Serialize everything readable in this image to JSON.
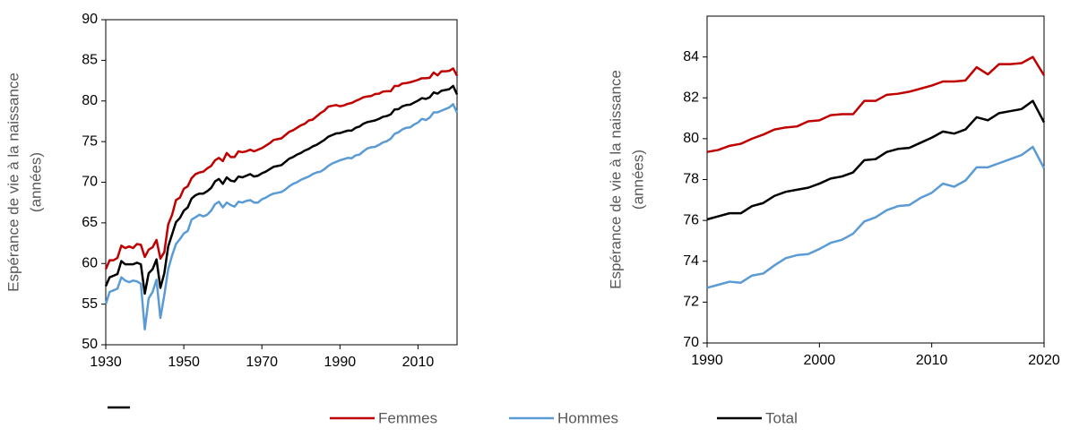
{
  "chart_data": [
    {
      "type": "line",
      "ylabel": [
        "Espérance de vie à la naissance",
        "(années)"
      ],
      "x": [
        1930,
        1931,
        1932,
        1933,
        1934,
        1935,
        1936,
        1937,
        1938,
        1939,
        1940,
        1941,
        1942,
        1943,
        1944,
        1945,
        1946,
        1947,
        1948,
        1949,
        1950,
        1951,
        1952,
        1953,
        1954,
        1955,
        1956,
        1957,
        1958,
        1959,
        1960,
        1961,
        1962,
        1963,
        1964,
        1965,
        1966,
        1967,
        1968,
        1969,
        1970,
        1971,
        1972,
        1973,
        1974,
        1975,
        1976,
        1977,
        1978,
        1979,
        1980,
        1981,
        1982,
        1983,
        1984,
        1985,
        1986,
        1987,
        1988,
        1989,
        1990,
        1991,
        1992,
        1993,
        1994,
        1995,
        1996,
        1997,
        1998,
        1999,
        2000,
        2001,
        2002,
        2003,
        2004,
        2005,
        2006,
        2007,
        2008,
        2009,
        2010,
        2011,
        2012,
        2013,
        2014,
        2015,
        2016,
        2017,
        2018,
        2019,
        2020
      ],
      "xlim": [
        1930,
        2020
      ],
      "xticks": [
        1930,
        1950,
        1970,
        1990,
        2010
      ],
      "ylim": [
        50,
        90
      ],
      "yticks": [
        50,
        55,
        60,
        65,
        70,
        75,
        80,
        85,
        90
      ],
      "series": [
        {
          "name": "Femmes",
          "color": "#c00000",
          "values": [
            59.3,
            60.4,
            60.4,
            60.7,
            62.2,
            61.9,
            62.1,
            61.9,
            62.4,
            62.3,
            60.8,
            61.7,
            62.0,
            62.9,
            60.6,
            61.4,
            64.8,
            66.0,
            67.8,
            68.1,
            69.2,
            69.5,
            70.5,
            71.0,
            71.2,
            71.3,
            71.7,
            72.0,
            72.7,
            73.0,
            72.6,
            73.6,
            73.1,
            73.1,
            73.8,
            73.7,
            73.8,
            74.0,
            73.8,
            74.0,
            74.2,
            74.5,
            74.8,
            75.2,
            75.3,
            75.4,
            75.8,
            76.2,
            76.4,
            76.7,
            77.0,
            77.2,
            77.6,
            77.7,
            78.1,
            78.5,
            78.8,
            79.3,
            79.4,
            79.5,
            79.35,
            79.45,
            79.65,
            79.75,
            80.0,
            80.2,
            80.45,
            80.55,
            80.6,
            80.85,
            80.9,
            81.15,
            81.2,
            81.2,
            81.85,
            81.85,
            82.15,
            82.2,
            82.3,
            82.45,
            82.6,
            82.8,
            82.8,
            82.85,
            83.5,
            83.15,
            83.65,
            83.65,
            83.7,
            84.0,
            83.1
          ]
        },
        {
          "name": "Hommes",
          "color": "#5b9bd5",
          "values": [
            55.0,
            56.5,
            56.7,
            56.9,
            58.3,
            57.9,
            57.7,
            57.9,
            57.8,
            57.5,
            51.9,
            55.7,
            56.5,
            58.0,
            53.3,
            56.1,
            59.3,
            61.0,
            62.4,
            63.0,
            63.7,
            64.0,
            65.4,
            65.7,
            66.0,
            65.8,
            66.0,
            66.5,
            67.3,
            67.6,
            66.9,
            67.5,
            67.2,
            67.0,
            67.6,
            67.5,
            67.7,
            67.8,
            67.5,
            67.5,
            67.9,
            68.1,
            68.4,
            68.6,
            68.7,
            68.8,
            69.1,
            69.5,
            69.8,
            70.0,
            70.3,
            70.5,
            70.7,
            71.0,
            71.2,
            71.3,
            71.6,
            72.0,
            72.3,
            72.5,
            72.7,
            72.85,
            73.0,
            72.95,
            73.3,
            73.4,
            73.8,
            74.15,
            74.3,
            74.35,
            74.6,
            74.9,
            75.05,
            75.35,
            75.95,
            76.15,
            76.5,
            76.7,
            76.75,
            77.1,
            77.35,
            77.8,
            77.65,
            77.95,
            78.6,
            78.6,
            78.8,
            79.0,
            79.2,
            79.6,
            78.55
          ]
        },
        {
          "name": "Total",
          "color": "#000000",
          "values": [
            57.2,
            58.3,
            58.5,
            58.7,
            60.3,
            59.9,
            59.9,
            59.9,
            60.1,
            59.9,
            56.3,
            58.8,
            59.3,
            60.5,
            57.0,
            58.8,
            62.1,
            63.6,
            65.1,
            65.6,
            66.5,
            66.9,
            68.0,
            68.4,
            68.6,
            68.6,
            68.9,
            69.3,
            70.1,
            70.4,
            69.8,
            70.6,
            70.2,
            70.1,
            70.7,
            70.6,
            70.8,
            71.0,
            70.7,
            70.8,
            71.1,
            71.3,
            71.6,
            71.9,
            72.0,
            72.1,
            72.5,
            72.9,
            73.1,
            73.4,
            73.6,
            73.9,
            74.1,
            74.4,
            74.6,
            74.9,
            75.2,
            75.6,
            75.8,
            76.0,
            76.05,
            76.2,
            76.35,
            76.35,
            76.7,
            76.85,
            77.2,
            77.4,
            77.5,
            77.6,
            77.8,
            78.05,
            78.15,
            78.35,
            78.95,
            79.0,
            79.35,
            79.5,
            79.55,
            79.8,
            80.05,
            80.35,
            80.25,
            80.45,
            81.05,
            80.9,
            81.25,
            81.35,
            81.45,
            81.85,
            80.8
          ]
        }
      ]
    },
    {
      "type": "line",
      "ylabel": [
        "Espérance de vie à la naissance",
        "(années)"
      ],
      "x": [
        1990,
        1991,
        1992,
        1993,
        1994,
        1995,
        1996,
        1997,
        1998,
        1999,
        2000,
        2001,
        2002,
        2003,
        2004,
        2005,
        2006,
        2007,
        2008,
        2009,
        2010,
        2011,
        2012,
        2013,
        2014,
        2015,
        2016,
        2017,
        2018,
        2019,
        2020
      ],
      "xlim": [
        1990,
        2020
      ],
      "xticks": [
        1990,
        2000,
        2010,
        2020
      ],
      "ylim": [
        70,
        86
      ],
      "yticks": [
        70,
        72,
        74,
        76,
        78,
        80,
        82,
        84
      ],
      "series": [
        {
          "color": "#c00000",
          "values": [
            79.35,
            79.45,
            79.65,
            79.75,
            80.0,
            80.2,
            80.45,
            80.55,
            80.6,
            80.85,
            80.9,
            81.15,
            81.2,
            81.2,
            81.85,
            81.85,
            82.15,
            82.2,
            82.3,
            82.45,
            82.6,
            82.8,
            82.8,
            82.85,
            83.5,
            83.15,
            83.65,
            83.65,
            83.7,
            84.0,
            83.1
          ]
        },
        {
          "color": "#5b9bd5",
          "values": [
            72.7,
            72.85,
            73.0,
            72.95,
            73.3,
            73.4,
            73.8,
            74.15,
            74.3,
            74.35,
            74.6,
            74.9,
            75.05,
            75.35,
            75.95,
            76.15,
            76.5,
            76.7,
            76.75,
            77.1,
            77.35,
            77.8,
            77.65,
            77.95,
            78.6,
            78.6,
            78.8,
            79.0,
            79.2,
            79.6,
            78.55
          ]
        },
        {
          "color": "#000000",
          "values": [
            76.05,
            76.2,
            76.35,
            76.35,
            76.7,
            76.85,
            77.2,
            77.4,
            77.5,
            77.6,
            77.8,
            78.05,
            78.15,
            78.35,
            78.95,
            79.0,
            79.35,
            79.5,
            79.55,
            79.8,
            80.05,
            80.35,
            80.25,
            80.45,
            81.05,
            80.9,
            81.25,
            81.35,
            81.45,
            81.85,
            80.8
          ]
        }
      ]
    }
  ]
}
